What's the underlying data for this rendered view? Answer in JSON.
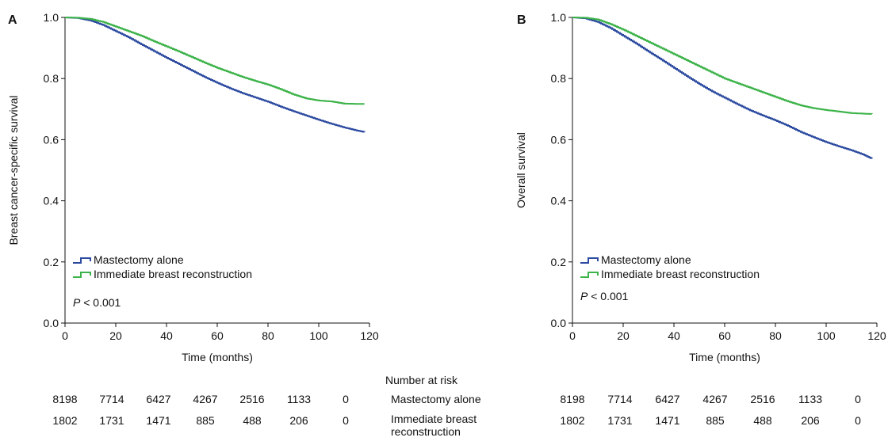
{
  "chart_data": [
    {
      "type": "line",
      "panel_label": "A",
      "xlabel": "Time (months)",
      "ylabel": "Breast cancer-specific survival",
      "xlim": [
        0,
        120
      ],
      "ylim": [
        0.0,
        1.0
      ],
      "xticks": [
        "0",
        "20",
        "40",
        "60",
        "80",
        "100",
        "120"
      ],
      "yticks": [
        "0.0",
        "0.2",
        "0.4",
        "0.6",
        "0.8",
        "1.0"
      ],
      "legend_position": "lower-left",
      "annotation": {
        "p_italic": "P",
        "rest": " < 0.001"
      },
      "series": [
        {
          "name": "Mastectomy alone",
          "color": "#2c4ba0",
          "x": [
            0,
            5,
            10,
            15,
            20,
            25,
            30,
            35,
            40,
            45,
            50,
            55,
            60,
            65,
            70,
            75,
            80,
            85,
            90,
            95,
            100,
            105,
            110,
            115,
            118
          ],
          "y": [
            1.0,
            0.998,
            0.99,
            0.975,
            0.955,
            0.935,
            0.912,
            0.89,
            0.868,
            0.847,
            0.826,
            0.805,
            0.786,
            0.768,
            0.752,
            0.738,
            0.724,
            0.708,
            0.693,
            0.679,
            0.665,
            0.652,
            0.64,
            0.63,
            0.625
          ]
        },
        {
          "name": "Immediate breast reconstruction",
          "color": "#3db34a",
          "x": [
            0,
            5,
            10,
            15,
            20,
            25,
            30,
            35,
            40,
            45,
            50,
            55,
            60,
            65,
            70,
            75,
            80,
            85,
            90,
            95,
            100,
            105,
            110,
            115,
            118
          ],
          "y": [
            1.0,
            0.999,
            0.995,
            0.985,
            0.97,
            0.955,
            0.94,
            0.922,
            0.905,
            0.888,
            0.87,
            0.852,
            0.835,
            0.82,
            0.805,
            0.792,
            0.78,
            0.765,
            0.748,
            0.735,
            0.728,
            0.725,
            0.718,
            0.717,
            0.717
          ]
        }
      ]
    },
    {
      "type": "line",
      "panel_label": "B",
      "xlabel": "Time (months)",
      "ylabel": "Overall survival",
      "xlim": [
        0,
        120
      ],
      "ylim": [
        0.0,
        1.0
      ],
      "xticks": [
        "0",
        "20",
        "40",
        "60",
        "80",
        "100",
        "120"
      ],
      "yticks": [
        "0.0",
        "0.2",
        "0.4",
        "0.6",
        "0.8",
        "1.0"
      ],
      "legend_position": "lower-left",
      "annotation": {
        "p_italic": "P",
        "rest": " < 0.001"
      },
      "series": [
        {
          "name": "Mastectomy alone",
          "color": "#2c4ba0",
          "x": [
            0,
            5,
            10,
            15,
            20,
            25,
            30,
            35,
            40,
            45,
            50,
            55,
            60,
            65,
            70,
            75,
            80,
            85,
            90,
            95,
            100,
            105,
            110,
            115,
            118
          ],
          "y": [
            1.0,
            0.997,
            0.985,
            0.965,
            0.94,
            0.915,
            0.888,
            0.862,
            0.835,
            0.808,
            0.782,
            0.758,
            0.737,
            0.716,
            0.696,
            0.679,
            0.663,
            0.645,
            0.625,
            0.608,
            0.592,
            0.578,
            0.565,
            0.55,
            0.538
          ]
        },
        {
          "name": "Immediate breast reconstruction",
          "color": "#3db34a",
          "x": [
            0,
            5,
            10,
            15,
            20,
            25,
            30,
            35,
            40,
            45,
            50,
            55,
            60,
            65,
            70,
            75,
            80,
            85,
            90,
            95,
            100,
            105,
            110,
            115,
            118
          ],
          "y": [
            1.0,
            0.999,
            0.993,
            0.978,
            0.96,
            0.94,
            0.92,
            0.9,
            0.88,
            0.86,
            0.84,
            0.82,
            0.8,
            0.785,
            0.77,
            0.755,
            0.74,
            0.725,
            0.712,
            0.703,
            0.697,
            0.692,
            0.687,
            0.685,
            0.684
          ]
        }
      ]
    }
  ],
  "risk_table": {
    "header": "Number at risk",
    "rows": [
      {
        "label": "Mastectomy alone",
        "values": [
          "8198",
          "7714",
          "6427",
          "4267",
          "2516",
          "1133",
          "0"
        ]
      },
      {
        "label": "Immediate breast reconstruction",
        "values": [
          "1802",
          "1731",
          "1471",
          "885",
          "488",
          "206",
          "0"
        ]
      }
    ]
  }
}
